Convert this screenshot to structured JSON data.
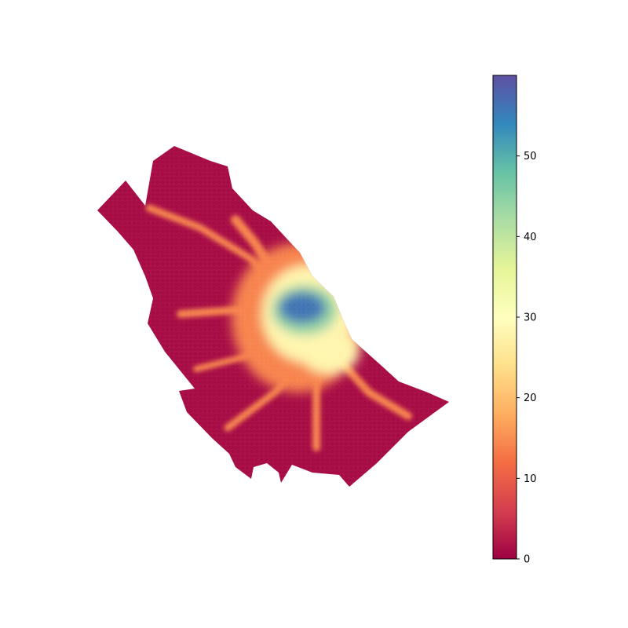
{
  "chart_data": {
    "type": "heatmap",
    "title": "",
    "xlabel": "",
    "ylabel": "",
    "axes_visible": false,
    "grid": false,
    "cell_shape": "hexagon",
    "colormap": "Spectral",
    "colorbar": {
      "placement": "right",
      "orientation": "vertical",
      "range": [
        0,
        60
      ],
      "ticks": [
        0,
        10,
        20,
        30,
        40,
        50
      ],
      "tick_labels": [
        "0",
        "10",
        "20",
        "30",
        "40",
        "50"
      ]
    },
    "color_stops": [
      "#9e0142",
      "#d53e4f",
      "#f46d43",
      "#fdae61",
      "#fee08b",
      "#ffffbf",
      "#e6f598",
      "#abdda4",
      "#66c2a5",
      "#3288bd",
      "#5e4fa2"
    ],
    "value_range_observed": [
      0,
      60
    ],
    "regions": {
      "background_level": 1,
      "hotspot_center_level": 56,
      "hotspot_inner_level": 44,
      "hotspot_ring_level": 28,
      "corridor_level": 14
    }
  }
}
